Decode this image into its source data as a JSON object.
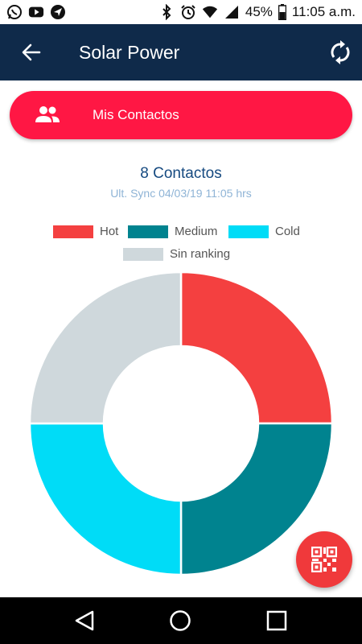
{
  "status_bar": {
    "icons_left": [
      "whatsapp-icon",
      "youtube-icon",
      "telegram-icon"
    ],
    "icons_right": [
      "bluetooth-icon",
      "alarm-icon",
      "wifi-icon",
      "signal-icon"
    ],
    "battery_percent": "45%",
    "time": "11:05 a.m."
  },
  "app_bar": {
    "title": "Solar Power",
    "back_icon": "arrow-left-icon",
    "sync_icon": "sync-icon",
    "background": "#0f2a4a"
  },
  "contacts_button": {
    "label": "Mis Contactos",
    "icon": "people-icon",
    "color": "#ff1744"
  },
  "summary": {
    "count_text": "8 Contactos",
    "sync_text": "Ult. Sync 04/03/19 11:05 hrs"
  },
  "chart_data": {
    "type": "pie",
    "title": "",
    "donut": true,
    "legend_placement": "top",
    "categories": [
      "Hot",
      "Medium",
      "Cold",
      "Sin ranking"
    ],
    "values": [
      2,
      2,
      2,
      2
    ],
    "colors": [
      "#f44040",
      "#00838f",
      "#00dcf7",
      "#cfd8dc"
    ],
    "start_angle_deg": -90,
    "clockwise": true
  },
  "fab": {
    "icon": "qr-code-icon",
    "color": "#f0393b"
  },
  "nav_bar": {
    "buttons": [
      "back-triangle-icon",
      "home-circle-icon",
      "recents-square-icon"
    ]
  }
}
